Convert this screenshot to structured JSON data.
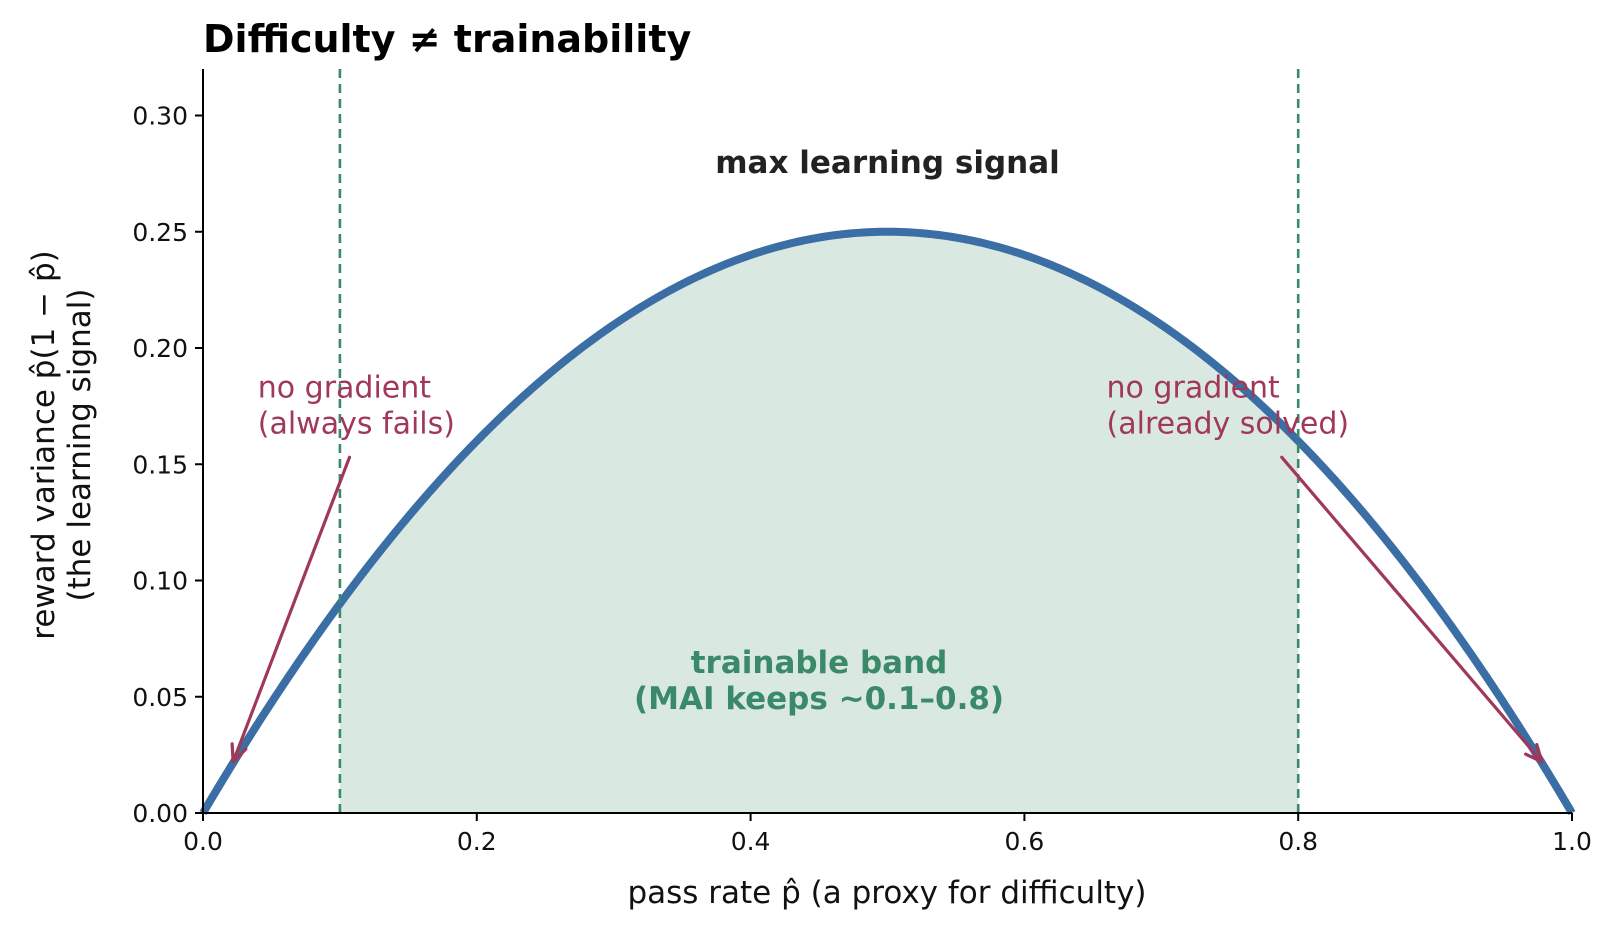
{
  "chart_data": {
    "type": "area",
    "title": "Difficulty ≠ trainability",
    "xlabel": "pass rate  p̂  (a proxy for difficulty)",
    "ylabel_line1": "reward variance  p̂(1 − p̂)",
    "ylabel_line2": "(the learning signal)",
    "xlim": [
      0.0,
      1.0
    ],
    "ylim": [
      0.0,
      0.32
    ],
    "x_ticks": [
      0.0,
      0.2,
      0.4,
      0.6,
      0.8,
      1.0
    ],
    "x_tick_labels": [
      "0.0",
      "0.2",
      "0.4",
      "0.6",
      "0.8",
      "1.0"
    ],
    "y_ticks": [
      0.0,
      0.05,
      0.1,
      0.15,
      0.2,
      0.25,
      0.3
    ],
    "y_tick_labels": [
      "0.00",
      "0.05",
      "0.10",
      "0.15",
      "0.20",
      "0.25",
      "0.30"
    ],
    "grid": false,
    "series": [
      {
        "function": "p*(1-p)",
        "x": [
          0.0,
          0.05,
          0.1,
          0.15,
          0.2,
          0.25,
          0.3,
          0.35,
          0.4,
          0.45,
          0.5,
          0.55,
          0.6,
          0.65,
          0.7,
          0.75,
          0.8,
          0.85,
          0.9,
          0.95,
          1.0
        ],
        "y": [
          0.0,
          0.0475,
          0.09,
          0.1275,
          0.16,
          0.1875,
          0.21,
          0.2275,
          0.24,
          0.2475,
          0.25,
          0.2475,
          0.24,
          0.2275,
          0.21,
          0.1875,
          0.16,
          0.1275,
          0.09,
          0.0475,
          0.0
        ],
        "color": "#3a6ea5"
      }
    ],
    "band": {
      "x_start": 0.1,
      "x_end": 0.8,
      "fill_color": "#dae8e2",
      "line_color": "#3a8a6a"
    },
    "annotations": {
      "max_signal": {
        "text": "max learning signal",
        "x": 0.5,
        "y": 0.28,
        "color": "#222222"
      },
      "band_label": {
        "line1": "trainable band",
        "line2": "(MAI keeps ~0.1–0.8)",
        "x": 0.45,
        "y": 0.05,
        "color": "#3a8a6a"
      },
      "left_note": {
        "line1": "no gradient",
        "line2": "(always fails)",
        "text_x": 0.04,
        "text_y": 0.165,
        "arrow_from": [
          0.107,
          0.153
        ],
        "arrow_to": [
          0.022,
          0.022
        ],
        "color": "#a0385a"
      },
      "right_note": {
        "line1": "no gradient",
        "line2": "(already solved)",
        "text_x": 0.66,
        "text_y": 0.165,
        "arrow_from": [
          0.788,
          0.153
        ],
        "arrow_to": [
          0.978,
          0.022
        ],
        "color": "#a0385a"
      }
    }
  }
}
